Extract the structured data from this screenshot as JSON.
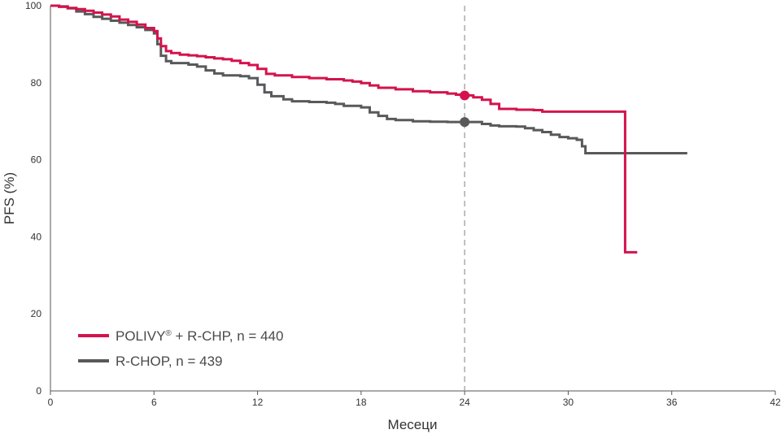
{
  "chart_data": {
    "type": "line",
    "subtype": "step",
    "title": "",
    "xlabel": "Месеци",
    "ylabel": "PFS (%)",
    "xlim": [
      0,
      42
    ],
    "ylim": [
      0,
      100
    ],
    "x_ticks": [
      0,
      6,
      12,
      18,
      24,
      30,
      36,
      42
    ],
    "x_tick_labels": [
      "0",
      "6",
      "12",
      "18",
      "24",
      "30",
      "36",
      "42"
    ],
    "y_ticks": [
      0,
      20,
      40,
      60,
      80,
      100
    ],
    "y_tick_labels": [
      "0",
      "20",
      "40",
      "60",
      "80",
      "100"
    ],
    "grid": false,
    "legend_position": "bottom-left",
    "reference_line": {
      "x": 24,
      "style": "dashed",
      "color": "#aaaaaa"
    },
    "series": [
      {
        "name": "POLIVY® + R-CHP, n = 440",
        "legend_main": "POLIVY",
        "legend_sup": "®",
        "legend_rest": " + R-CHP, n = 440",
        "color": "#d3134d",
        "marker": {
          "x": 24,
          "y": 76.7
        },
        "points": [
          [
            0,
            100
          ],
          [
            0.5,
            99.7
          ],
          [
            1,
            99.4
          ],
          [
            1.5,
            99.1
          ],
          [
            2,
            98.7
          ],
          [
            2.5,
            98.2
          ],
          [
            3,
            97.7
          ],
          [
            3.5,
            97.2
          ],
          [
            4,
            96.4
          ],
          [
            4.5,
            95.8
          ],
          [
            5,
            95.1
          ],
          [
            5.5,
            94.2
          ],
          [
            6,
            93.4
          ],
          [
            6.2,
            91.5
          ],
          [
            6.4,
            89.5
          ],
          [
            6.7,
            88.2
          ],
          [
            7,
            87.7
          ],
          [
            7.5,
            87.3
          ],
          [
            8,
            87.1
          ],
          [
            8.5,
            86.9
          ],
          [
            9,
            86.6
          ],
          [
            9.5,
            86.3
          ],
          [
            10,
            86.1
          ],
          [
            10.5,
            85.7
          ],
          [
            11,
            85.1
          ],
          [
            11.5,
            84.6
          ],
          [
            12,
            83.6
          ],
          [
            12.5,
            82.3
          ],
          [
            13,
            81.9
          ],
          [
            14,
            81.5
          ],
          [
            15,
            81.2
          ],
          [
            16,
            80.9
          ],
          [
            17,
            80.6
          ],
          [
            17.5,
            80.3
          ],
          [
            18,
            79.9
          ],
          [
            18.5,
            79.3
          ],
          [
            19,
            78.7
          ],
          [
            20,
            78.3
          ],
          [
            21,
            77.8
          ],
          [
            22,
            77.5
          ],
          [
            23,
            77.2
          ],
          [
            23.5,
            76.9
          ],
          [
            24,
            76.7
          ],
          [
            24.5,
            76.2
          ],
          [
            25,
            75.6
          ],
          [
            25.5,
            74.5
          ],
          [
            26,
            73.2
          ],
          [
            27,
            73.0
          ],
          [
            28,
            72.9
          ],
          [
            28.5,
            72.5
          ],
          [
            30,
            72.5
          ],
          [
            31,
            72.5
          ],
          [
            32,
            72.5
          ],
          [
            33,
            72.5
          ],
          [
            33.3,
            36.0
          ],
          [
            34,
            36.0
          ]
        ]
      },
      {
        "name": "R-CHOP, n = 439",
        "legend_main": "R-CHOP, n = 439",
        "legend_sup": "",
        "legend_rest": "",
        "color": "#58595b",
        "marker": {
          "x": 24,
          "y": 69.8
        },
        "points": [
          [
            0,
            100
          ],
          [
            0.5,
            99.8
          ],
          [
            1,
            99.3
          ],
          [
            1.5,
            98.5
          ],
          [
            2,
            97.8
          ],
          [
            2.5,
            97.1
          ],
          [
            3,
            96.6
          ],
          [
            3.5,
            96.1
          ],
          [
            4,
            95.6
          ],
          [
            4.5,
            95.0
          ],
          [
            5,
            94.4
          ],
          [
            5.5,
            93.7
          ],
          [
            6,
            92.8
          ],
          [
            6.2,
            90.0
          ],
          [
            6.4,
            87.0
          ],
          [
            6.7,
            85.6
          ],
          [
            7,
            85.1
          ],
          [
            8,
            84.7
          ],
          [
            8.5,
            84.2
          ],
          [
            9,
            83.2
          ],
          [
            9.5,
            82.4
          ],
          [
            10,
            81.9
          ],
          [
            11,
            81.7
          ],
          [
            11.5,
            81.2
          ],
          [
            12,
            79.5
          ],
          [
            12.4,
            77.5
          ],
          [
            12.8,
            76.5
          ],
          [
            13.5,
            75.7
          ],
          [
            14,
            75.2
          ],
          [
            15,
            75.0
          ],
          [
            16,
            74.8
          ],
          [
            16.5,
            74.5
          ],
          [
            17,
            74.0
          ],
          [
            18,
            73.6
          ],
          [
            18.5,
            72.3
          ],
          [
            19,
            71.4
          ],
          [
            19.5,
            70.6
          ],
          [
            20,
            70.3
          ],
          [
            21,
            70.0
          ],
          [
            22,
            69.9
          ],
          [
            23,
            69.8
          ],
          [
            24,
            69.8
          ],
          [
            25,
            69.3
          ],
          [
            25.5,
            68.9
          ],
          [
            26,
            68.7
          ],
          [
            27,
            68.6
          ],
          [
            27.5,
            68.2
          ],
          [
            28,
            67.7
          ],
          [
            28.5,
            67.2
          ],
          [
            29,
            66.5
          ],
          [
            29.5,
            65.9
          ],
          [
            30,
            65.6
          ],
          [
            30.5,
            65.2
          ],
          [
            30.8,
            63.5
          ],
          [
            31,
            61.7
          ],
          [
            33,
            61.7
          ],
          [
            34,
            61.7
          ],
          [
            35,
            61.7
          ],
          [
            36,
            61.7
          ],
          [
            36.9,
            61.7
          ]
        ]
      }
    ]
  }
}
